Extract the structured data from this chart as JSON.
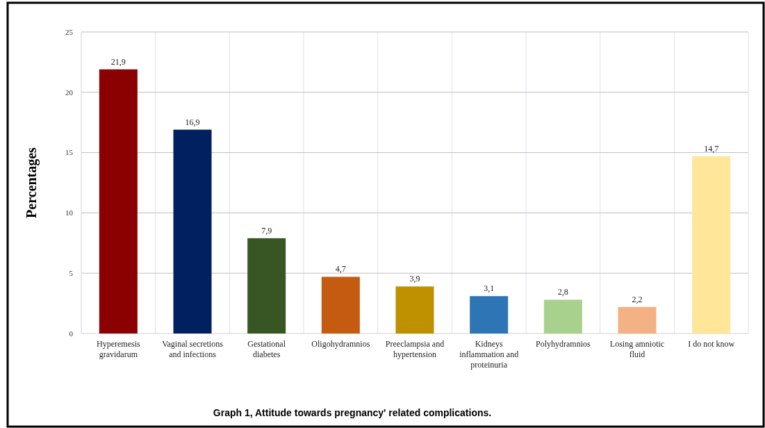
{
  "chart_data": {
    "type": "bar",
    "title": "Graph 1, Attitude towards pregnancy' related complications.",
    "ylabel": "Percentages",
    "categories": [
      "Hyperemesis gravidarum",
      "Vaginal secretions and infections",
      "Gestational diabetes",
      "Oligohydramnios",
      "Preeclampsia and hypertension",
      "Kidneys inflammation and proteinuria",
      "Polyhydramnios",
      "Losing amniotic fluid",
      "I do not know"
    ],
    "values": [
      21.9,
      16.9,
      7.9,
      4.7,
      3.9,
      3.1,
      2.8,
      2.2,
      14.7
    ],
    "colors": [
      "#8b0000",
      "#002060",
      "#375623",
      "#c55a11",
      "#bf9000",
      "#2e75b6",
      "#a9d18e",
      "#f4b183",
      "#ffe699"
    ],
    "value_labels": [
      "21,9",
      "16,9",
      "7,9",
      "4,7",
      "3,9",
      "3,1",
      "2,8",
      "2,2",
      "14,7"
    ],
    "ylim": [
      0,
      25
    ],
    "yticks": [
      0,
      5,
      10,
      15,
      20,
      25
    ],
    "grid": true
  }
}
